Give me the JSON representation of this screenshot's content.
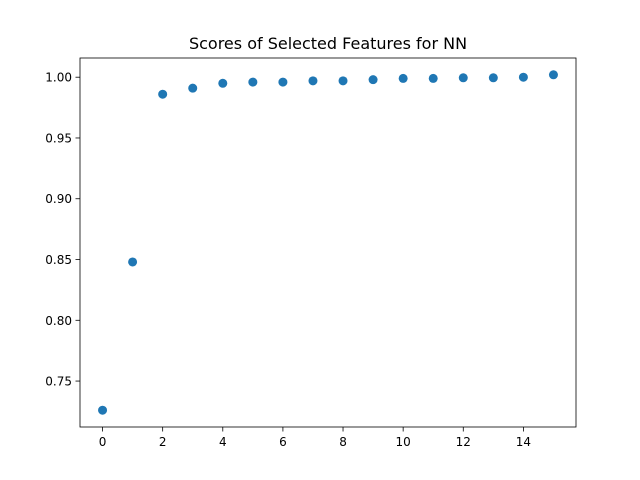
{
  "chart_data": {
    "type": "scatter",
    "title": "Scores of Selected Features for NN",
    "xlabel": "",
    "ylabel": "",
    "x": [
      0,
      1,
      2,
      3,
      4,
      5,
      6,
      7,
      8,
      9,
      10,
      11,
      12,
      13,
      14,
      15
    ],
    "y": [
      0.726,
      0.848,
      0.986,
      0.991,
      0.995,
      0.996,
      0.996,
      0.997,
      0.997,
      0.998,
      0.999,
      0.999,
      0.9995,
      0.9995,
      1.0,
      1.002
    ],
    "xlim": [
      -0.75,
      15.75
    ],
    "ylim": [
      0.7122,
      1.0158
    ],
    "xticks": [
      "0",
      "2",
      "4",
      "6",
      "8",
      "10",
      "12",
      "14"
    ],
    "yticks": [
      "0.75",
      "0.80",
      "0.85",
      "0.90",
      "0.95",
      "1.00"
    ],
    "grid": false,
    "legend": "none",
    "color": "#1f77b4"
  }
}
